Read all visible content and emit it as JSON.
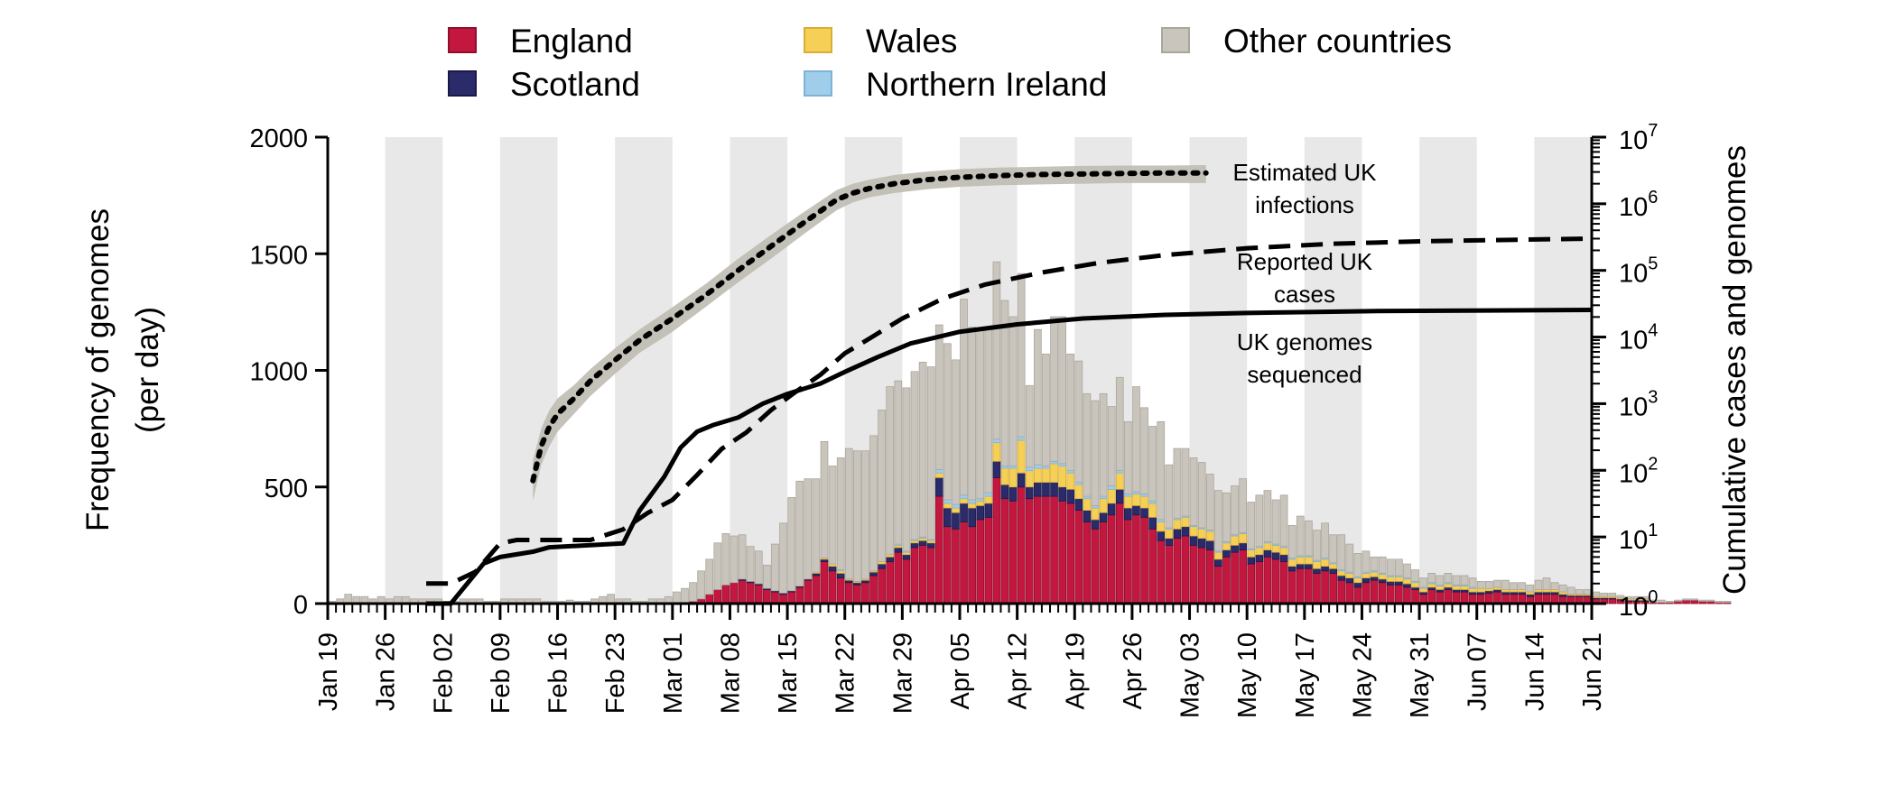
{
  "chart_data": {
    "type": "bar",
    "stacked": true,
    "ylabel_left": [
      "Frequency of genomes",
      "(per day)"
    ],
    "ylabel_right": "Cumulative cases and genomes",
    "ylim_left": [
      0,
      2000
    ],
    "yticks_left": [
      "0",
      "500",
      "1000",
      "1500",
      "2000"
    ],
    "ylim_right_log10": [
      0,
      7
    ],
    "yticks_right": [
      {
        "base": "10",
        "exp": "0"
      },
      {
        "base": "10",
        "exp": "1"
      },
      {
        "base": "10",
        "exp": "2"
      },
      {
        "base": "10",
        "exp": "3"
      },
      {
        "base": "10",
        "exp": "4"
      },
      {
        "base": "10",
        "exp": "5"
      },
      {
        "base": "10",
        "exp": "6"
      },
      {
        "base": "10",
        "exp": "7"
      }
    ],
    "x_start": "2020-01-19",
    "x_end": "2020-06-21",
    "x_tick_labels": [
      "Jan 19",
      "Jan 26",
      "Feb 02",
      "Feb 09",
      "Feb 16",
      "Feb 23",
      "Mar 01",
      "Mar 08",
      "Mar 15",
      "Mar 22",
      "Mar 29",
      "Apr 05",
      "Apr 12",
      "Apr 19",
      "Apr 26",
      "May 03",
      "May 10",
      "May 17",
      "May 24",
      "May 31",
      "Jun 07",
      "Jun 14",
      "Jun 21"
    ],
    "week_shading": "alternate weeks shaded grey",
    "legend": [
      {
        "label": "England",
        "color": "#c4173f"
      },
      {
        "label": "Scotland",
        "color": "#2b2a6b"
      },
      {
        "label": "Wales",
        "color": "#f6cf57"
      },
      {
        "label": "Northern Ireland",
        "color": "#9fcdea"
      },
      {
        "label": "Other countries",
        "color": "#c9c5bd"
      }
    ],
    "legend_placement": "top",
    "bar_series_daily": {
      "England": [
        0,
        0,
        0,
        0,
        0,
        0,
        0,
        0,
        0,
        0,
        0,
        0,
        0,
        0,
        0,
        0,
        0,
        0,
        0,
        0,
        0,
        0,
        0,
        0,
        0,
        0,
        0,
        0,
        0,
        0,
        0,
        0,
        0,
        0,
        0,
        0,
        0,
        0,
        0,
        0,
        0,
        0,
        0,
        5,
        10,
        20,
        40,
        60,
        80,
        90,
        100,
        90,
        80,
        60,
        50,
        40,
        50,
        70,
        100,
        120,
        180,
        140,
        110,
        90,
        80,
        90,
        120,
        150,
        180,
        220,
        190,
        240,
        250,
        240,
        460,
        330,
        320,
        350,
        330,
        360,
        370,
        540,
        450,
        440,
        500,
        450,
        460,
        460,
        460,
        440,
        430,
        400,
        350,
        320,
        350,
        380,
        430,
        360,
        380,
        370,
        320,
        270,
        250,
        280,
        290,
        250,
        240,
        230,
        160,
        200,
        220,
        230,
        170,
        180,
        200,
        190,
        180,
        140,
        150,
        150,
        130,
        140,
        130,
        100,
        90,
        70,
        90,
        100,
        90,
        80,
        80,
        70,
        60,
        40,
        60,
        50,
        60,
        50,
        50,
        40,
        40,
        45,
        50,
        40,
        40,
        40,
        30,
        40,
        40,
        40,
        30,
        30,
        30,
        30,
        20,
        20,
        20,
        15,
        10,
        10,
        10,
        5,
        5,
        5,
        10,
        15,
        15,
        10,
        10,
        5,
        5
      ],
      "Scotland": [
        0,
        0,
        0,
        0,
        0,
        0,
        0,
        0,
        0,
        0,
        0,
        0,
        0,
        0,
        0,
        0,
        0,
        0,
        0,
        0,
        0,
        0,
        0,
        0,
        0,
        0,
        0,
        0,
        0,
        0,
        0,
        0,
        0,
        0,
        0,
        0,
        0,
        0,
        0,
        0,
        0,
        0,
        0,
        0,
        0,
        0,
        0,
        0,
        0,
        0,
        5,
        5,
        5,
        5,
        5,
        5,
        5,
        5,
        5,
        10,
        10,
        20,
        20,
        10,
        10,
        10,
        15,
        20,
        20,
        20,
        20,
        20,
        20,
        20,
        80,
        80,
        70,
        80,
        80,
        60,
        60,
        70,
        60,
        60,
        60,
        50,
        60,
        60,
        60,
        60,
        60,
        50,
        50,
        40,
        40,
        50,
        60,
        50,
        40,
        40,
        50,
        40,
        30,
        40,
        40,
        40,
        40,
        40,
        30,
        30,
        30,
        30,
        30,
        30,
        30,
        30,
        30,
        20,
        20,
        20,
        20,
        20,
        20,
        20,
        20,
        20,
        20,
        15,
        15,
        15,
        15,
        15,
        10,
        10,
        10,
        10,
        10,
        10,
        10,
        10,
        10,
        10,
        10,
        10,
        10,
        10,
        10,
        10,
        10,
        10,
        10,
        5,
        5,
        5,
        5,
        5,
        5,
        5,
        5,
        5,
        5,
        0,
        0,
        0,
        0,
        0,
        0,
        0,
        0,
        0,
        0
      ],
      "Wales": [
        0,
        0,
        0,
        0,
        0,
        0,
        0,
        0,
        0,
        0,
        0,
        0,
        0,
        0,
        0,
        0,
        0,
        0,
        0,
        0,
        0,
        0,
        0,
        0,
        0,
        0,
        0,
        0,
        0,
        0,
        0,
        0,
        0,
        0,
        0,
        0,
        0,
        0,
        0,
        0,
        0,
        0,
        0,
        0,
        0,
        0,
        0,
        0,
        0,
        0,
        0,
        0,
        0,
        0,
        0,
        0,
        0,
        0,
        0,
        5,
        5,
        10,
        10,
        5,
        5,
        5,
        5,
        10,
        10,
        10,
        10,
        10,
        10,
        10,
        20,
        20,
        20,
        20,
        20,
        20,
        30,
        80,
        70,
        80,
        140,
        70,
        60,
        60,
        80,
        90,
        70,
        60,
        50,
        50,
        60,
        60,
        70,
        50,
        50,
        50,
        60,
        40,
        40,
        40,
        40,
        40,
        40,
        40,
        30,
        30,
        40,
        40,
        30,
        30,
        30,
        30,
        30,
        30,
        30,
        30,
        30,
        30,
        20,
        20,
        20,
        20,
        20,
        20,
        20,
        20,
        20,
        20,
        20,
        15,
        15,
        15,
        15,
        15,
        15,
        15,
        15,
        10,
        10,
        10,
        10,
        10,
        10,
        10,
        10,
        10,
        10,
        5,
        5,
        5,
        5,
        5,
        5,
        5,
        5,
        5,
        5,
        0,
        0,
        0,
        0,
        0,
        0,
        0,
        0,
        0,
        0
      ],
      "Northern Ireland": [
        0,
        0,
        0,
        0,
        0,
        0,
        0,
        0,
        0,
        0,
        0,
        0,
        0,
        0,
        0,
        0,
        0,
        0,
        0,
        0,
        0,
        0,
        0,
        0,
        0,
        0,
        0,
        0,
        0,
        0,
        0,
        0,
        0,
        0,
        0,
        0,
        0,
        0,
        0,
        0,
        0,
        0,
        0,
        0,
        0,
        0,
        0,
        0,
        0,
        0,
        0,
        0,
        0,
        0,
        0,
        0,
        0,
        0,
        0,
        0,
        0,
        0,
        5,
        0,
        0,
        0,
        0,
        0,
        0,
        5,
        5,
        5,
        5,
        5,
        15,
        15,
        15,
        15,
        15,
        10,
        15,
        15,
        10,
        10,
        15,
        15,
        15,
        10,
        10,
        10,
        10,
        10,
        10,
        10,
        10,
        15,
        10,
        10,
        10,
        10,
        10,
        10,
        5,
        5,
        5,
        5,
        5,
        5,
        5,
        5,
        5,
        5,
        5,
        5,
        5,
        5,
        5,
        5,
        5,
        5,
        5,
        5,
        5,
        5,
        5,
        5,
        5,
        5,
        5,
        5,
        5,
        5,
        5,
        5,
        5,
        5,
        5,
        5,
        5,
        5,
        0,
        0,
        0,
        0,
        0,
        0,
        0,
        0,
        0,
        0,
        0,
        0,
        0,
        0,
        0,
        0,
        0,
        0,
        0,
        0,
        0,
        0,
        0,
        0,
        0,
        0,
        0,
        0,
        0,
        0,
        0,
        0
      ],
      "Other countries": [
        10,
        20,
        40,
        30,
        30,
        20,
        30,
        20,
        30,
        30,
        20,
        20,
        20,
        20,
        10,
        10,
        20,
        20,
        20,
        10,
        10,
        20,
        20,
        20,
        20,
        20,
        10,
        10,
        10,
        15,
        10,
        10,
        20,
        30,
        40,
        20,
        20,
        10,
        10,
        20,
        20,
        30,
        50,
        60,
        80,
        120,
        150,
        200,
        220,
        200,
        190,
        150,
        140,
        100,
        200,
        300,
        400,
        450,
        430,
        400,
        500,
        420,
        480,
        560,
        560,
        550,
        580,
        650,
        720,
        700,
        700,
        720,
        750,
        740,
        620,
        670,
        620,
        840,
        740,
        720,
        700,
        760,
        710,
        640,
        700,
        350,
        580,
        480,
        620,
        630,
        500,
        520,
        440,
        450,
        440,
        340,
        400,
        310,
        450,
        370,
        320,
        420,
        270,
        300,
        290,
        290,
        280,
        240,
        260,
        210,
        210,
        230,
        200,
        220,
        220,
        190,
        220,
        140,
        170,
        150,
        130,
        150,
        120,
        150,
        120,
        100,
        90,
        60,
        70,
        70,
        70,
        60,
        50,
        40,
        40,
        40,
        40,
        40,
        40,
        40,
        30,
        30,
        30,
        40,
        30,
        30,
        30,
        40,
        50,
        30,
        30,
        30,
        20,
        20,
        20,
        15,
        15,
        10,
        10,
        10,
        10,
        10,
        10,
        5,
        5,
        5,
        5,
        5,
        5,
        5,
        5
      ]
    },
    "lines": [
      {
        "label_lines": [
          "Estimated UK",
          "infections"
        ],
        "style": "dotted",
        "band": true,
        "x": [
          "2020-02-13",
          "2020-02-14",
          "2020-02-15",
          "2020-02-16",
          "2020-02-18",
          "2020-02-20",
          "2020-02-23",
          "2020-02-26",
          "2020-03-01",
          "2020-03-05",
          "2020-03-09",
          "2020-03-13",
          "2020-03-17",
          "2020-03-21",
          "2020-03-23",
          "2020-03-25",
          "2020-03-28",
          "2020-04-01",
          "2020-04-05",
          "2020-04-10",
          "2020-04-15",
          "2020-04-20",
          "2020-04-25",
          "2020-04-30",
          "2020-05-05"
        ],
        "y": [
          70,
          230,
          450,
          700,
          1200,
          2200,
          4500,
          9000,
          19000,
          42000,
          100000,
          230000,
          520000,
          1150000,
          1450000,
          1700000,
          2000000,
          2300000,
          2500000,
          2650000,
          2750000,
          2800000,
          2850000,
          2900000,
          2900000
        ],
        "band_low": [
          35,
          120,
          230,
          380,
          700,
          1300,
          2800,
          5800,
          12000,
          28000,
          66000,
          150000,
          350000,
          800000,
          1050000,
          1250000,
          1450000,
          1650000,
          1800000,
          1900000,
          1950000,
          2000000,
          2050000,
          2050000,
          2050000
        ],
        "band_high": [
          140,
          420,
          800,
          1200,
          1900,
          3300,
          6800,
          13000,
          28000,
          62000,
          150000,
          340000,
          750000,
          1600000,
          2000000,
          2300000,
          2700000,
          3050000,
          3300000,
          3500000,
          3600000,
          3700000,
          3750000,
          3750000,
          3800000
        ]
      },
      {
        "label_lines": [
          "Reported UK",
          "cases"
        ],
        "style": "dashed",
        "x": [
          "2020-01-31",
          "2020-02-03",
          "2020-02-06",
          "2020-02-09",
          "2020-02-11",
          "2020-02-15",
          "2020-02-20",
          "2020-02-24",
          "2020-02-27",
          "2020-03-01",
          "2020-03-04",
          "2020-03-07",
          "2020-03-10",
          "2020-03-13",
          "2020-03-16",
          "2020-03-19",
          "2020-03-22",
          "2020-03-25",
          "2020-03-29",
          "2020-04-03",
          "2020-04-08",
          "2020-04-15",
          "2020-04-22",
          "2020-04-30",
          "2020-05-10",
          "2020-05-20",
          "2020-06-01",
          "2020-06-21"
        ],
        "y": [
          2,
          2,
          3,
          8,
          9,
          9,
          9,
          13,
          23,
          36,
          85,
          210,
          370,
          800,
          1500,
          2700,
          5700,
          9500,
          19000,
          38000,
          61000,
          93000,
          130000,
          170000,
          215000,
          250000,
          275000,
          300000
        ]
      },
      {
        "label_lines": [
          "UK genomes",
          "sequenced"
        ],
        "style": "solid",
        "x": [
          "2020-01-31",
          "2020-02-03",
          "2020-02-05",
          "2020-02-07",
          "2020-02-09",
          "2020-02-13",
          "2020-02-15",
          "2020-02-24",
          "2020-02-26",
          "2020-02-29",
          "2020-03-02",
          "2020-03-04",
          "2020-03-06",
          "2020-03-09",
          "2020-03-12",
          "2020-03-15",
          "2020-03-19",
          "2020-03-22",
          "2020-03-26",
          "2020-03-30",
          "2020-04-05",
          "2020-04-12",
          "2020-04-20",
          "2020-04-30",
          "2020-05-10",
          "2020-05-25",
          "2020-06-21"
        ],
        "y": [
          1,
          1,
          2,
          4,
          5,
          6,
          7,
          8,
          25,
          80,
          220,
          380,
          480,
          620,
          1000,
          1400,
          2000,
          3000,
          5000,
          8000,
          12000,
          15500,
          19000,
          21500,
          23000,
          24500,
          25500
        ]
      }
    ]
  }
}
